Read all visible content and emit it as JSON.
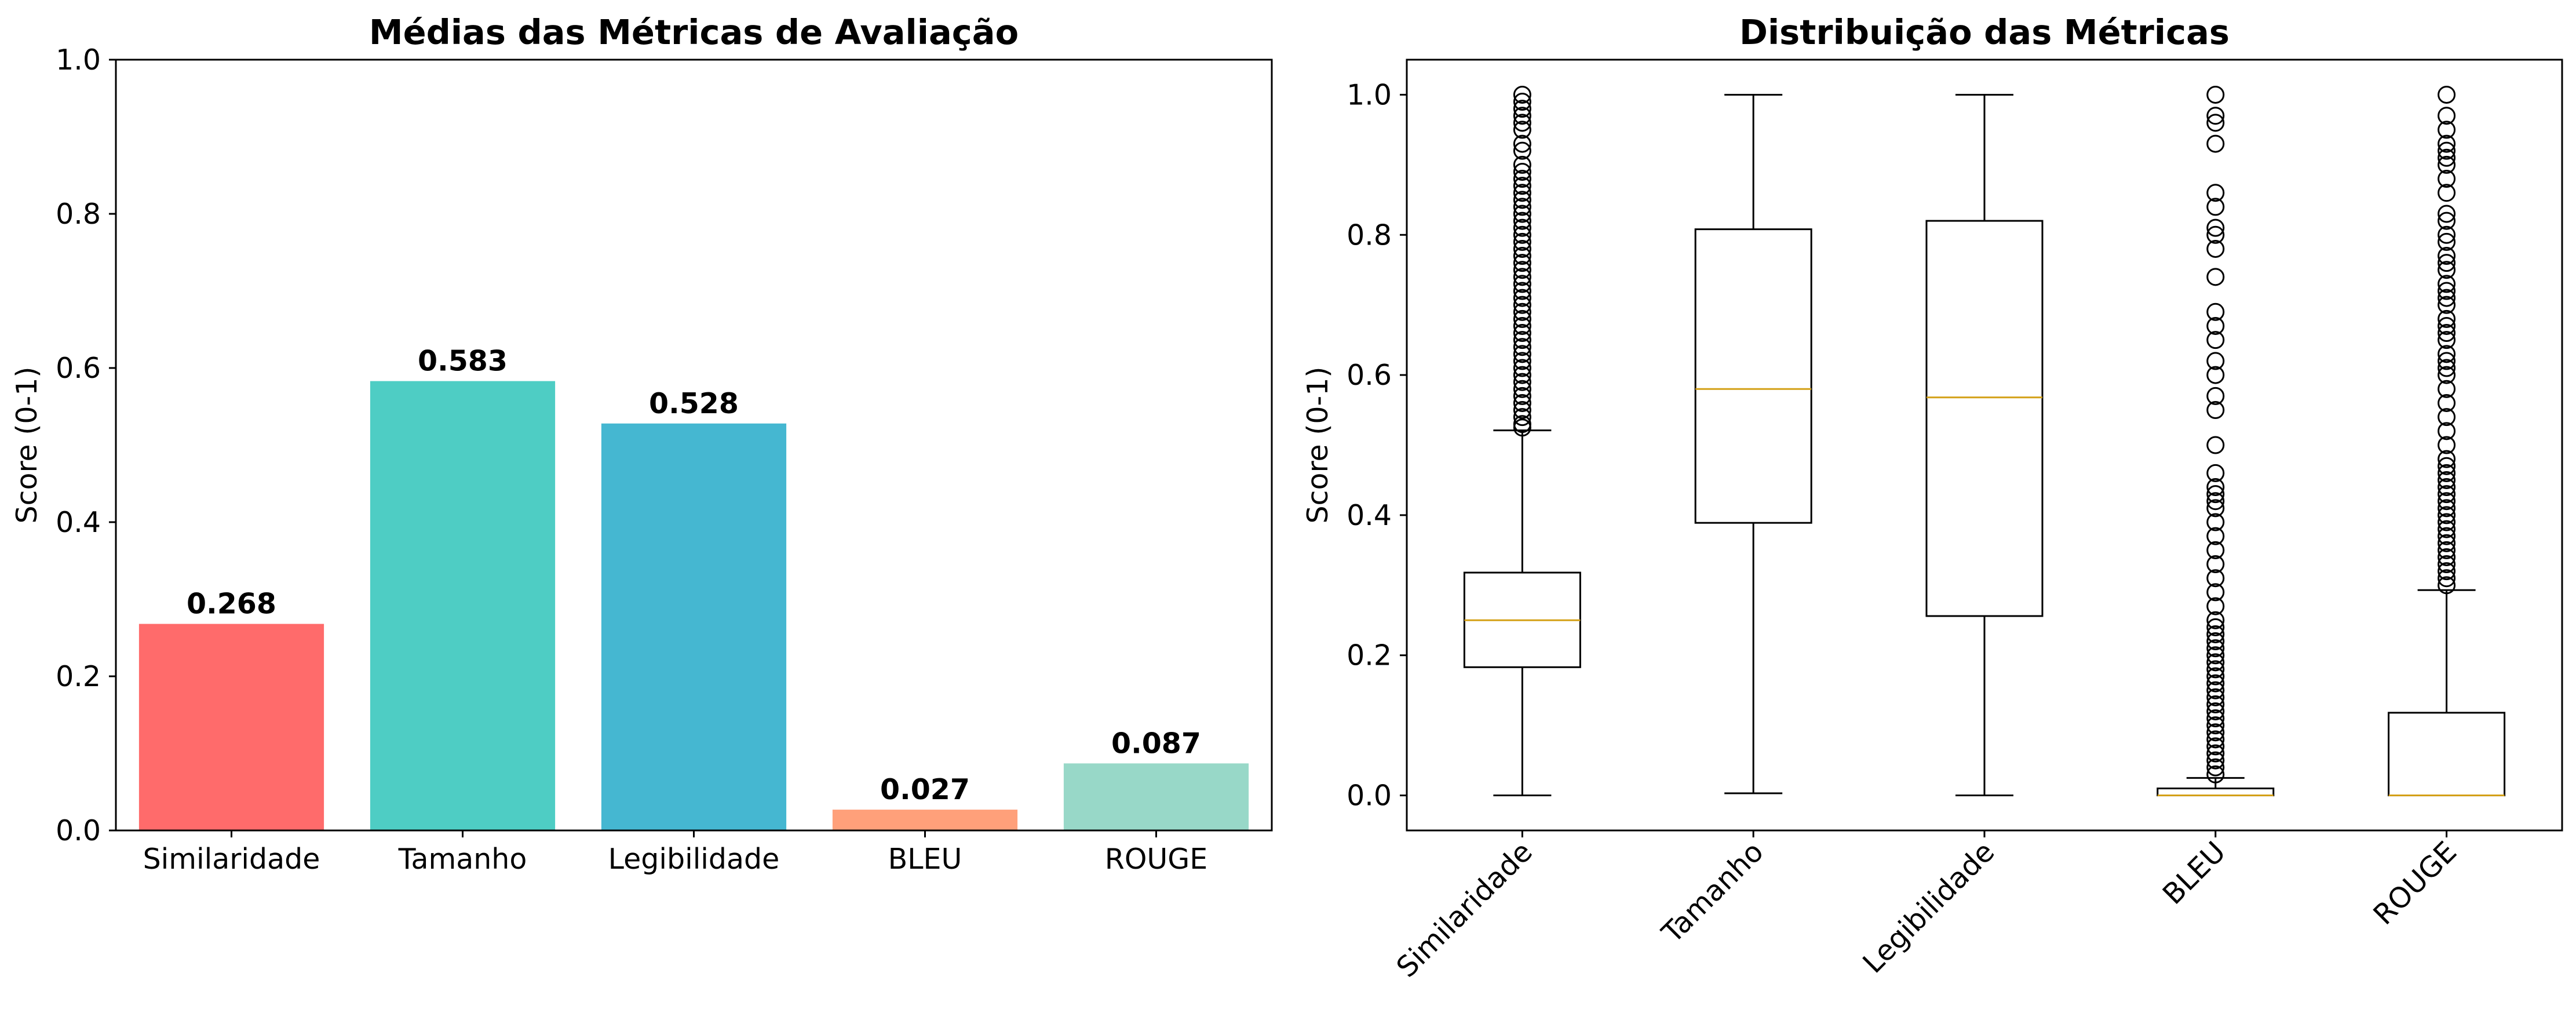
{
  "chart_data": [
    {
      "type": "bar",
      "title": "Médias das Métricas de Avaliação",
      "xlabel": "",
      "ylabel": "Score (0-1)",
      "ylim": [
        0,
        1
      ],
      "yticks": [
        "0.0",
        "0.2",
        "0.4",
        "0.6",
        "0.8",
        "1.0"
      ],
      "categories": [
        "Similaridade",
        "Tamanho",
        "Legibilidade",
        "BLEU",
        "ROUGE"
      ],
      "values": [
        0.268,
        0.583,
        0.528,
        0.027,
        0.087
      ],
      "value_labels": [
        "0.268",
        "0.583",
        "0.528",
        "0.027",
        "0.087"
      ],
      "colors": [
        "#ff6b6b",
        "#4ecdc4",
        "#45b7d1",
        "#ffa07a",
        "#98d8c8"
      ],
      "grid": false
    },
    {
      "type": "boxplot",
      "title": "Distribuição das Métricas",
      "xlabel": "",
      "ylabel": "Score (0-1)",
      "ylim": [
        -0.05,
        1.05
      ],
      "yticks": [
        "0.0",
        "0.2",
        "0.4",
        "0.6",
        "0.8",
        "1.0"
      ],
      "categories": [
        "Similaridade",
        "Tamanho",
        "Legibilidade",
        "BLEU",
        "ROUGE"
      ],
      "median_color": "#d4a017",
      "grid": false,
      "boxes": [
        {
          "whisker_low": 0.0,
          "q1": 0.183,
          "median": 0.25,
          "q3": 0.318,
          "whisker_high": 0.521,
          "outliers": [
            0.525,
            0.53,
            0.54,
            0.55,
            0.56,
            0.57,
            0.58,
            0.59,
            0.6,
            0.61,
            0.62,
            0.63,
            0.64,
            0.65,
            0.66,
            0.67,
            0.68,
            0.69,
            0.7,
            0.71,
            0.72,
            0.73,
            0.74,
            0.75,
            0.76,
            0.77,
            0.78,
            0.79,
            0.8,
            0.81,
            0.82,
            0.83,
            0.84,
            0.85,
            0.86,
            0.87,
            0.88,
            0.89,
            0.9,
            0.92,
            0.93,
            0.95,
            0.96,
            0.97,
            0.98,
            0.99,
            1.0
          ]
        },
        {
          "whisker_low": 0.003,
          "q1": 0.389,
          "median": 0.58,
          "q3": 0.808,
          "whisker_high": 1.0,
          "outliers": []
        },
        {
          "whisker_low": 0.0,
          "q1": 0.256,
          "median": 0.568,
          "q3": 0.82,
          "whisker_high": 1.0,
          "outliers": []
        },
        {
          "whisker_low": 0.0,
          "q1": 0.0,
          "median": 0.0,
          "q3": 0.01,
          "whisker_high": 0.025,
          "outliers": [
            0.03,
            0.04,
            0.05,
            0.06,
            0.07,
            0.08,
            0.09,
            0.1,
            0.11,
            0.12,
            0.13,
            0.14,
            0.15,
            0.16,
            0.17,
            0.18,
            0.19,
            0.2,
            0.21,
            0.22,
            0.23,
            0.24,
            0.25,
            0.27,
            0.29,
            0.31,
            0.33,
            0.35,
            0.37,
            0.39,
            0.41,
            0.42,
            0.43,
            0.44,
            0.46,
            0.5,
            0.55,
            0.57,
            0.6,
            0.62,
            0.65,
            0.67,
            0.69,
            0.74,
            0.78,
            0.8,
            0.81,
            0.84,
            0.86,
            0.93,
            0.96,
            0.97,
            1.0
          ]
        },
        {
          "whisker_low": 0.0,
          "q1": 0.0,
          "median": 0.0,
          "q3": 0.118,
          "whisker_high": 0.293,
          "outliers": [
            0.3,
            0.31,
            0.32,
            0.33,
            0.34,
            0.35,
            0.36,
            0.37,
            0.38,
            0.39,
            0.4,
            0.41,
            0.42,
            0.43,
            0.44,
            0.45,
            0.46,
            0.47,
            0.48,
            0.5,
            0.52,
            0.54,
            0.56,
            0.58,
            0.6,
            0.61,
            0.62,
            0.63,
            0.65,
            0.66,
            0.67,
            0.68,
            0.7,
            0.71,
            0.72,
            0.73,
            0.75,
            0.76,
            0.77,
            0.79,
            0.8,
            0.82,
            0.83,
            0.86,
            0.88,
            0.9,
            0.91,
            0.92,
            0.93,
            0.95,
            0.97,
            1.0
          ]
        }
      ]
    }
  ]
}
